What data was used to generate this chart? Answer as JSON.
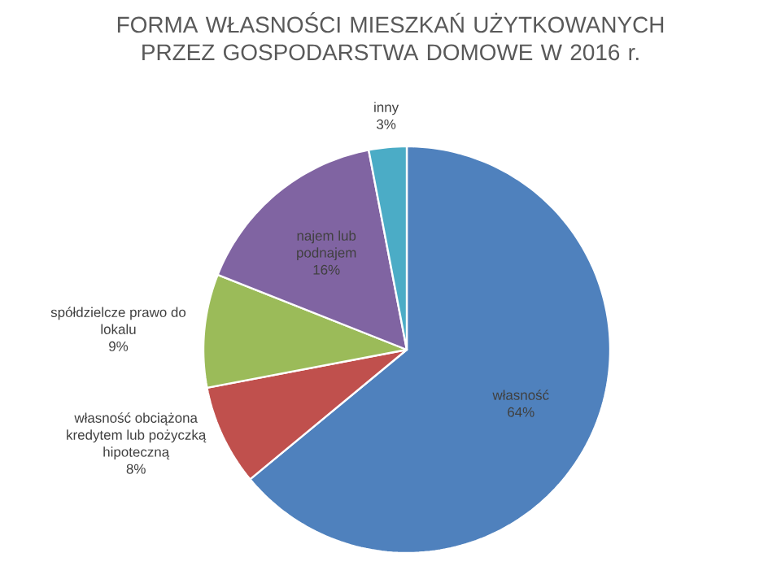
{
  "chart_data": {
    "type": "pie",
    "title": "FORMA WŁASNOŚCI MIESZKAŃ UŻYTKOWANYCH PRZEZ GOSPODARSTWA DOMOWE W 2016 r.",
    "categories": [
      "własność",
      "własność obciążona kredytem lub pożyczką hipoteczną",
      "spółdzielcze prawo do lokalu",
      "najem lub podnajem",
      "inny"
    ],
    "values": [
      64,
      8,
      9,
      16,
      3
    ],
    "value_labels": [
      "64%",
      "8%",
      "9%",
      "16%",
      "3%"
    ],
    "colors": [
      "#4f81bd",
      "#c0504d",
      "#9bbb59",
      "#8064a2",
      "#4bacc6"
    ]
  }
}
